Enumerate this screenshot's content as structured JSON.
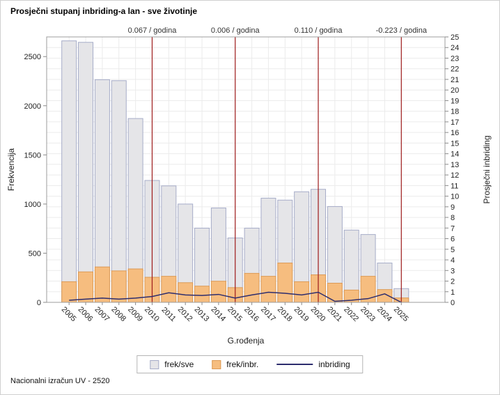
{
  "title": "Prosječni stupanj inbriding-a lan - sve životinje",
  "footnote": "Nacionalni izračun UV - 2520",
  "legend": {
    "items": [
      {
        "label": "frek/sve",
        "type": "swatch",
        "color_key": "bar_all"
      },
      {
        "label": "frek/inbr.",
        "type": "swatch",
        "color_key": "bar_inbred"
      },
      {
        "label": "inbriding",
        "type": "line",
        "color_key": "line"
      }
    ]
  },
  "colors": {
    "bar_all_fill": "#e5e5e8",
    "bar_all_border": "#a6acc8",
    "bar_inbred_fill": "#f6bd7f",
    "bar_inbred_border": "#dc9a55",
    "line": "#2d2d6e",
    "reference_line": "#9e1b1b",
    "grid": "#ebebeb",
    "frame": "#9c9c9c",
    "tick": "#8a8a8a",
    "text": "#222222"
  },
  "chart_data": {
    "type": "bar",
    "title": "Prosječni stupanj inbriding-a lan - sve životinje",
    "xlabel": "G.rođenja",
    "ylabel_left": "Frekvencija",
    "ylabel_right": "Prosječni inbriding",
    "grid": true,
    "legend_position": "bottom",
    "categories": [
      "2005",
      "2006",
      "2007",
      "2008",
      "2009",
      "2010",
      "2011",
      "2012",
      "2013",
      "2014",
      "2015",
      "2016",
      "2017",
      "2018",
      "2019",
      "2020",
      "2021",
      "2022",
      "2023",
      "2024",
      "2025"
    ],
    "series": [
      {
        "name": "frek/sve",
        "type": "bar",
        "axis": "left",
        "values": [
          2660,
          2645,
          2265,
          2255,
          1870,
          1240,
          1185,
          1000,
          755,
          960,
          655,
          755,
          1060,
          1040,
          1125,
          1150,
          975,
          735,
          690,
          400,
          140
        ]
      },
      {
        "name": "frek/inbr.",
        "type": "bar",
        "axis": "left",
        "values": [
          210,
          310,
          360,
          320,
          340,
          255,
          265,
          200,
          165,
          215,
          150,
          295,
          265,
          400,
          210,
          280,
          195,
          125,
          265,
          130,
          45
        ]
      },
      {
        "name": "inbriding",
        "type": "line",
        "axis": "right",
        "values": [
          0.2,
          0.3,
          0.4,
          0.3,
          0.4,
          0.55,
          0.9,
          0.7,
          0.65,
          0.75,
          0.4,
          0.7,
          0.95,
          0.85,
          0.7,
          0.95,
          0.1,
          0.2,
          0.35,
          0.8,
          0.0
        ]
      }
    ],
    "left_axis": {
      "label": "Frekvencija",
      "min": 0,
      "max": 2700,
      "ticks": [
        0,
        500,
        1000,
        1500,
        2000,
        2500
      ]
    },
    "right_axis": {
      "label": "Prosječni inbriding",
      "min": 0,
      "max": 25,
      "tick_step": 1
    },
    "reference_lines": [
      {
        "x": "2010",
        "label": "0.067 / godina"
      },
      {
        "x": "2015",
        "label": "0.006 / godina"
      },
      {
        "x": "2020",
        "label": "0.110 / godina"
      },
      {
        "x": "2025",
        "label": "-0.223 / godina"
      }
    ]
  }
}
